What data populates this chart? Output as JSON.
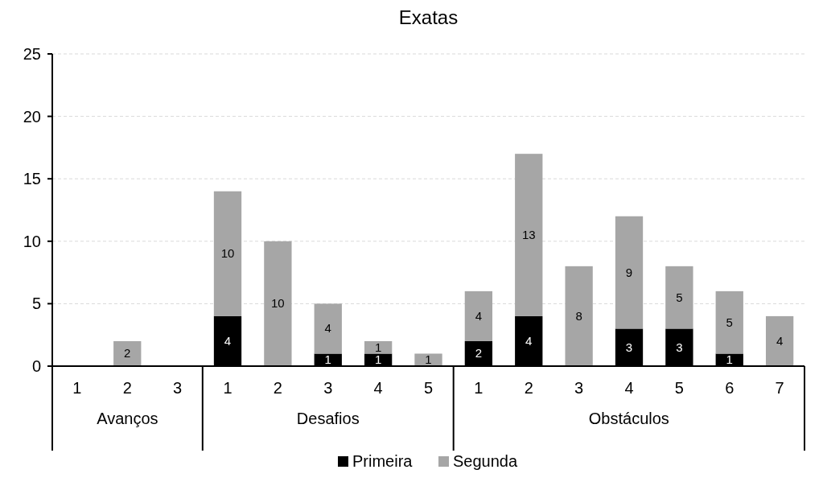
{
  "chart_data": {
    "type": "bar",
    "title": "Exatas",
    "stacked": true,
    "categories": [
      "1",
      "2",
      "3",
      "1",
      "2",
      "3",
      "4",
      "5",
      "1",
      "2",
      "3",
      "4",
      "5",
      "6",
      "7"
    ],
    "annotations": [
      "Avanços",
      "Desafios",
      "Obstáculos"
    ],
    "series": [
      {
        "name": "Primeira",
        "color": "#000000",
        "values": [
          0,
          0,
          0,
          4,
          0,
          1,
          1,
          0,
          2,
          4,
          0,
          3,
          3,
          1,
          0
        ],
        "value_labels": [
          null,
          null,
          null,
          "4",
          null,
          "1",
          "1",
          null,
          "2",
          "4",
          null,
          "3",
          "3",
          "1",
          null
        ]
      },
      {
        "name": "Segunda",
        "color": "#a6a6a6",
        "values": [
          0,
          2,
          0,
          10,
          10,
          4,
          1,
          1,
          4,
          13,
          8,
          9,
          5,
          5,
          4
        ],
        "value_labels": [
          null,
          "2",
          null,
          "10",
          "10",
          "4",
          "1",
          "1",
          "4",
          "13",
          "8",
          "9",
          "5",
          "5",
          "4"
        ]
      }
    ],
    "ylim": [
      0,
      25
    ],
    "yticks": [
      0,
      5,
      10,
      15,
      20,
      25
    ],
    "grid": "y",
    "legend": "bottom"
  }
}
